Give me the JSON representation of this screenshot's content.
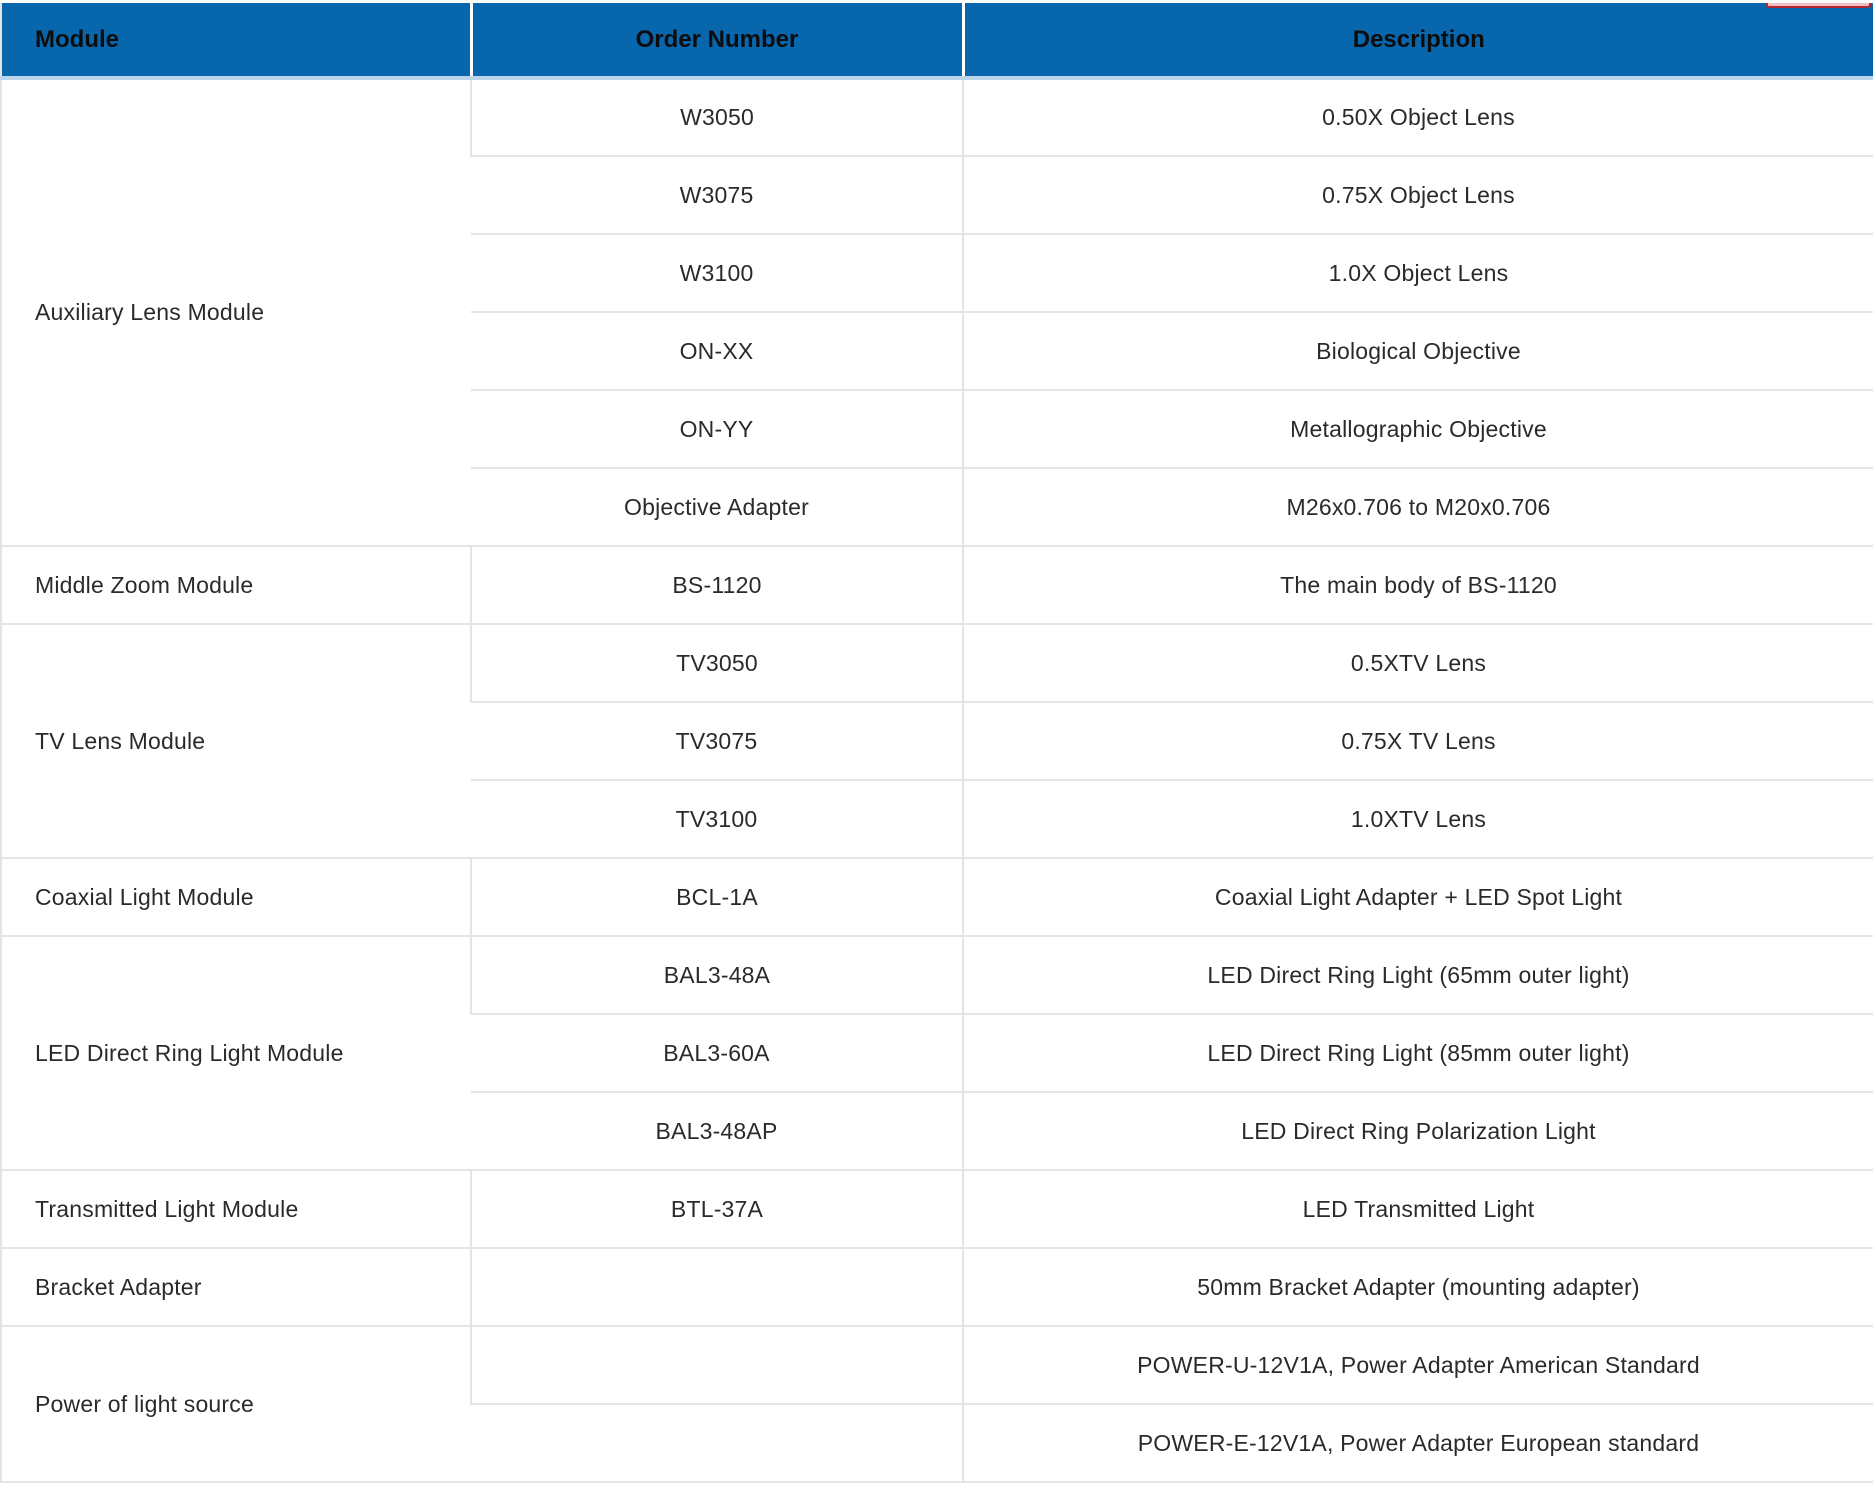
{
  "colors": {
    "header-bg": "#0866ac",
    "header-text": "#0d0d0d",
    "header-underline": "#bcd4ea",
    "grid-line": "#e4e4e4",
    "body-text": "#2a2a2a",
    "strip-fill": "#f2c0c4",
    "strip-border": "#b3282e"
  },
  "table": {
    "headers": [
      "Module",
      "Order Number",
      "Description"
    ],
    "groups": [
      {
        "module": "Auxiliary Lens Module",
        "rows": [
          {
            "order": "W3050",
            "description": "0.50X Object Lens"
          },
          {
            "order": "W3075",
            "description": "0.75X Object Lens"
          },
          {
            "order": "W3100",
            "description": "1.0X Object Lens"
          },
          {
            "order": "ON-XX",
            "description": "Biological Objective"
          },
          {
            "order": "ON-YY",
            "description": "Metallographic Objective"
          },
          {
            "order": "Objective Adapter",
            "description": "M26x0.706 to M20x0.706"
          }
        ]
      },
      {
        "module": "Middle Zoom Module",
        "rows": [
          {
            "order": "BS-1120",
            "description": "The main body of BS-1120"
          }
        ]
      },
      {
        "module": "TV Lens Module",
        "rows": [
          {
            "order": "TV3050",
            "description": "0.5XTV Lens"
          },
          {
            "order": "TV3075",
            "description": "0.75X TV Lens"
          },
          {
            "order": "TV3100",
            "description": "1.0XTV Lens"
          }
        ]
      },
      {
        "module": "Coaxial Light Module",
        "rows": [
          {
            "order": "BCL-1A",
            "description": "Coaxial Light Adapter + LED Spot Light"
          }
        ]
      },
      {
        "module": "LED Direct Ring Light Module",
        "rows": [
          {
            "order": "BAL3-48A",
            "description": "LED Direct Ring Light (65mm outer light)"
          },
          {
            "order": "BAL3-60A",
            "description": "LED Direct Ring Light (85mm outer light)"
          },
          {
            "order": "BAL3-48AP",
            "description": "LED Direct Ring Polarization Light"
          }
        ]
      },
      {
        "module": "Transmitted Light Module",
        "rows": [
          {
            "order": "BTL-37A",
            "description": "LED Transmitted Light"
          }
        ]
      },
      {
        "module": "Bracket Adapter",
        "rows": [
          {
            "order": "",
            "description": "50mm Bracket Adapter (mounting adapter)"
          }
        ]
      },
      {
        "module": "Power of light source",
        "rows": [
          {
            "order": "",
            "description": "POWER-U-12V1A, Power Adapter American Standard"
          },
          {
            "order": "",
            "description": "POWER-E-12V1A, Power Adapter European standard"
          }
        ]
      }
    ]
  }
}
